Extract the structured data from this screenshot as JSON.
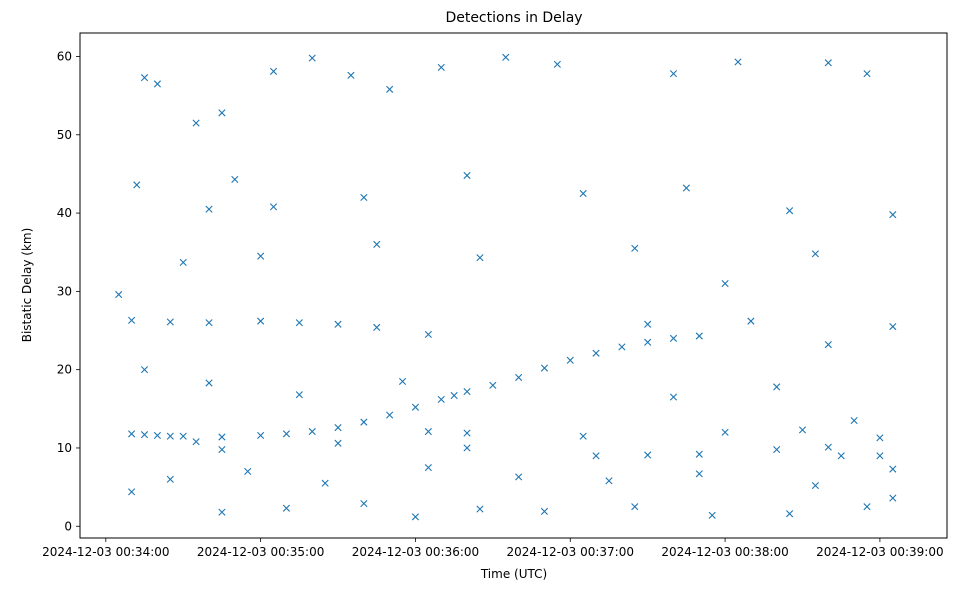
{
  "chart_data": {
    "type": "scatter",
    "title": "Detections in Delay",
    "xlabel": "Time (UTC)",
    "ylabel": "Bistatic Delay (km)",
    "x_axis": {
      "start": "2024-12-03 00:34:00",
      "tick_labels": [
        "2024-12-03 00:34:00",
        "2024-12-03 00:35:00",
        "2024-12-03 00:36:00",
        "2024-12-03 00:37:00",
        "2024-12-03 00:38:00",
        "2024-12-03 00:39:00"
      ],
      "xlim": [
        "2024-12-03 00:33:50",
        "2024-12-03 00:39:26"
      ]
    },
    "y_axis": {
      "tick_labels": [
        "0",
        "10",
        "20",
        "30",
        "40",
        "50",
        "60"
      ],
      "ylim": [
        -1.5,
        63
      ]
    },
    "marker": "x",
    "color": "#1f77b4",
    "grid": false,
    "series": [
      {
        "points": [
          [
            "2024-12-03 00:34:10",
            11.8
          ],
          [
            "2024-12-03 00:34:15",
            11.7
          ],
          [
            "2024-12-03 00:34:20",
            11.6
          ],
          [
            "2024-12-03 00:34:25",
            11.5
          ],
          [
            "2024-12-03 00:34:30",
            11.5
          ],
          [
            "2024-12-03 00:34:45",
            11.4
          ],
          [
            "2024-12-03 00:35:00",
            11.6
          ],
          [
            "2024-12-03 00:35:10",
            11.8
          ],
          [
            "2024-12-03 00:35:20",
            12.1
          ],
          [
            "2024-12-03 00:35:30",
            12.6
          ],
          [
            "2024-12-03 00:35:40",
            13.3
          ],
          [
            "2024-12-03 00:35:50",
            14.2
          ],
          [
            "2024-12-03 00:36:00",
            15.2
          ],
          [
            "2024-12-03 00:36:10",
            16.2
          ],
          [
            "2024-12-03 00:36:15",
            16.7
          ],
          [
            "2024-12-03 00:36:20",
            17.2
          ],
          [
            "2024-12-03 00:36:30",
            18.0
          ],
          [
            "2024-12-03 00:36:40",
            19.0
          ],
          [
            "2024-12-03 00:36:50",
            20.2
          ],
          [
            "2024-12-03 00:37:00",
            21.2
          ],
          [
            "2024-12-03 00:37:10",
            22.1
          ],
          [
            "2024-12-03 00:37:20",
            22.9
          ],
          [
            "2024-12-03 00:37:30",
            23.5
          ],
          [
            "2024-12-03 00:37:40",
            24.0
          ],
          [
            "2024-12-03 00:37:50",
            24.3
          ],
          [
            "2024-12-03 00:34:10",
            26.3
          ],
          [
            "2024-12-03 00:34:25",
            26.1
          ],
          [
            "2024-12-03 00:34:40",
            26.0
          ],
          [
            "2024-12-03 00:35:00",
            26.2
          ],
          [
            "2024-12-03 00:35:15",
            26.0
          ],
          [
            "2024-12-03 00:35:30",
            25.8
          ],
          [
            "2024-12-03 00:35:45",
            25.4
          ],
          [
            "2024-12-03 00:36:05",
            24.5
          ],
          [
            "2024-12-03 00:37:30",
            25.8
          ],
          [
            "2024-12-03 00:38:10",
            26.2
          ],
          [
            "2024-12-03 00:38:40",
            23.2
          ],
          [
            "2024-12-03 00:39:05",
            25.5
          ],
          [
            "2024-12-03 00:36:05",
            12.1
          ],
          [
            "2024-12-03 00:36:20",
            11.9
          ],
          [
            "2024-12-03 00:37:05",
            11.5
          ],
          [
            "2024-12-03 00:38:00",
            12.0
          ],
          [
            "2024-12-03 00:38:30",
            12.3
          ],
          [
            "2024-12-03 00:38:50",
            13.5
          ],
          [
            "2024-12-03 00:39:00",
            11.3
          ],
          [
            "2024-12-03 00:37:10",
            9.0
          ],
          [
            "2024-12-03 00:37:30",
            9.1
          ],
          [
            "2024-12-03 00:37:50",
            9.2
          ],
          [
            "2024-12-03 00:38:20",
            9.8
          ],
          [
            "2024-12-03 00:38:40",
            10.1
          ],
          [
            "2024-12-03 00:38:45",
            9.0
          ],
          [
            "2024-12-03 00:39:00",
            9.0
          ],
          [
            "2024-12-03 00:34:35",
            10.8
          ],
          [
            "2024-12-03 00:34:45",
            9.8
          ],
          [
            "2024-12-03 00:35:30",
            10.6
          ],
          [
            "2024-12-03 00:36:20",
            10.0
          ],
          [
            "2024-12-03 00:34:05",
            29.6
          ],
          [
            "2024-12-03 00:34:12",
            43.6
          ],
          [
            "2024-12-03 00:34:15",
            57.3
          ],
          [
            "2024-12-03 00:34:20",
            56.5
          ],
          [
            "2024-12-03 00:34:35",
            51.5
          ],
          [
            "2024-12-03 00:34:45",
            52.8
          ],
          [
            "2024-12-03 00:34:50",
            44.3
          ],
          [
            "2024-12-03 00:35:05",
            58.1
          ],
          [
            "2024-12-03 00:35:20",
            59.8
          ],
          [
            "2024-12-03 00:35:35",
            57.6
          ],
          [
            "2024-12-03 00:35:50",
            55.8
          ],
          [
            "2024-12-03 00:36:10",
            58.6
          ],
          [
            "2024-12-03 00:36:35",
            59.9
          ],
          [
            "2024-12-03 00:36:55",
            59.0
          ],
          [
            "2024-12-03 00:37:40",
            57.8
          ],
          [
            "2024-12-03 00:38:05",
            59.3
          ],
          [
            "2024-12-03 00:38:40",
            59.2
          ],
          [
            "2024-12-03 00:38:55",
            57.8
          ],
          [
            "2024-12-03 00:34:40",
            40.5
          ],
          [
            "2024-12-03 00:35:05",
            40.8
          ],
          [
            "2024-12-03 00:35:40",
            42.0
          ],
          [
            "2024-12-03 00:36:20",
            44.8
          ],
          [
            "2024-12-03 00:37:05",
            42.5
          ],
          [
            "2024-12-03 00:37:45",
            43.2
          ],
          [
            "2024-12-03 00:38:25",
            40.3
          ],
          [
            "2024-12-03 00:39:05",
            39.8
          ],
          [
            "2024-12-03 00:34:30",
            33.7
          ],
          [
            "2024-12-03 00:35:00",
            34.5
          ],
          [
            "2024-12-03 00:35:45",
            36.0
          ],
          [
            "2024-12-03 00:36:25",
            34.3
          ],
          [
            "2024-12-03 00:37:25",
            35.5
          ],
          [
            "2024-12-03 00:38:00",
            31.0
          ],
          [
            "2024-12-03 00:38:35",
            34.8
          ],
          [
            "2024-12-03 00:34:15",
            20.0
          ],
          [
            "2024-12-03 00:34:40",
            18.3
          ],
          [
            "2024-12-03 00:35:15",
            16.8
          ],
          [
            "2024-12-03 00:35:55",
            18.5
          ],
          [
            "2024-12-03 00:37:40",
            16.5
          ],
          [
            "2024-12-03 00:38:20",
            17.8
          ],
          [
            "2024-12-03 00:34:10",
            4.4
          ],
          [
            "2024-12-03 00:34:45",
            1.8
          ],
          [
            "2024-12-03 00:35:10",
            2.3
          ],
          [
            "2024-12-03 00:35:40",
            2.9
          ],
          [
            "2024-12-03 00:36:00",
            1.2
          ],
          [
            "2024-12-03 00:36:25",
            2.2
          ],
          [
            "2024-12-03 00:36:50",
            1.9
          ],
          [
            "2024-12-03 00:37:25",
            2.5
          ],
          [
            "2024-12-03 00:37:55",
            1.4
          ],
          [
            "2024-12-03 00:38:25",
            1.6
          ],
          [
            "2024-12-03 00:38:55",
            2.5
          ],
          [
            "2024-12-03 00:39:05",
            3.6
          ],
          [
            "2024-12-03 00:34:25",
            6.0
          ],
          [
            "2024-12-03 00:34:55",
            7.0
          ],
          [
            "2024-12-03 00:35:25",
            5.5
          ],
          [
            "2024-12-03 00:36:05",
            7.5
          ],
          [
            "2024-12-03 00:36:40",
            6.3
          ],
          [
            "2024-12-03 00:37:15",
            5.8
          ],
          [
            "2024-12-03 00:37:50",
            6.7
          ],
          [
            "2024-12-03 00:38:35",
            5.2
          ],
          [
            "2024-12-03 00:39:05",
            7.3
          ]
        ]
      }
    ]
  }
}
